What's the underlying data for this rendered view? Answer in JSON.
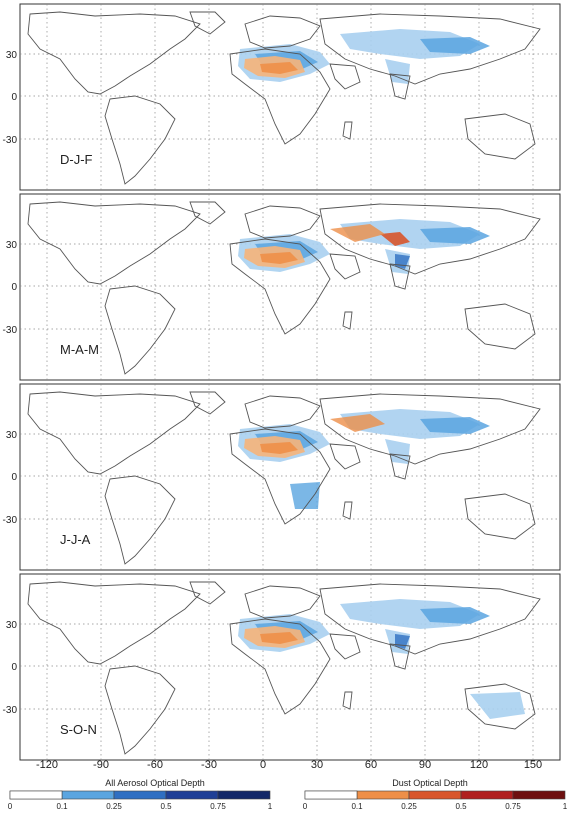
{
  "panels": [
    {
      "season": "D-J-F"
    },
    {
      "season": "M-A-M"
    },
    {
      "season": "J-J-A"
    },
    {
      "season": "S-O-N"
    }
  ],
  "y_ticks": [
    "30",
    "0",
    "-30"
  ],
  "x_ticks": [
    "-120",
    "-90",
    "-60",
    "-30",
    "0",
    "30",
    "60",
    "90",
    "120",
    "150"
  ],
  "colorbars": {
    "aerosol": {
      "title": "All Aerosol Optical Depth",
      "ticks": [
        "0",
        "0.1",
        "0.25",
        "0.5",
        "0.75",
        "1"
      ],
      "colors": [
        "#ffffff",
        "#a9d0f0",
        "#5aa5e0",
        "#2f6fc2",
        "#1f3f96",
        "#132868"
      ]
    },
    "dust": {
      "title": "Dust Optical Depth",
      "ticks": [
        "0",
        "0.1",
        "0.25",
        "0.5",
        "0.75",
        "1"
      ],
      "colors": [
        "#ffffff",
        "#f6b47a",
        "#ee8f48",
        "#d8552b",
        "#b01f1f",
        "#6e1010"
      ]
    }
  },
  "colors": {
    "land_outline": "#555555",
    "grid": "#8a8a8a",
    "aerosol_light": "#a9d0f0",
    "aerosol_mid": "#5aa5e0",
    "aerosol_dark": "#2f6fc2",
    "dust_light": "#f6b47a",
    "dust_mid": "#ee8f48",
    "dust_dark": "#d8552b"
  }
}
